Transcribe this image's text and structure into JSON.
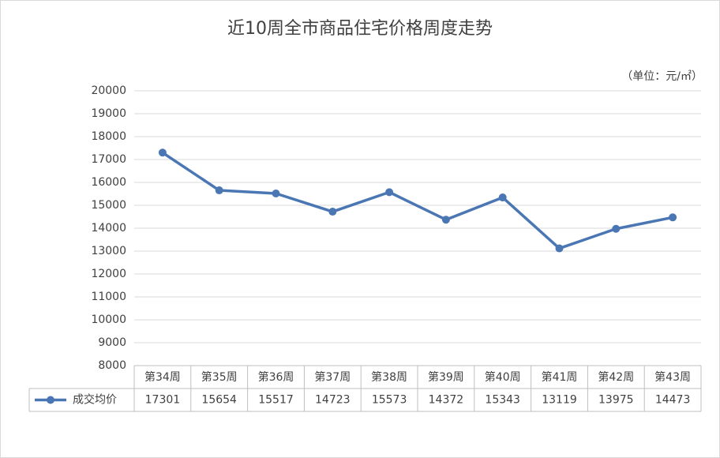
{
  "chart_data": {
    "type": "line",
    "title": "近10周全市商品住宅价格周度走势",
    "unit": "（单位：元/㎡）",
    "categories": [
      "第34周",
      "第35周",
      "第36周",
      "第37周",
      "第38周",
      "第39周",
      "第40周",
      "第41周",
      "第42周",
      "第43周"
    ],
    "series": [
      {
        "name": "成交均价",
        "color": "#4a77b4",
        "values": [
          17301,
          15654,
          15517,
          14723,
          15573,
          14372,
          15343,
          13119,
          13975,
          14473
        ]
      }
    ],
    "ylim": [
      8000,
      20000
    ],
    "yticks": [
      8000,
      9000,
      10000,
      11000,
      12000,
      13000,
      14000,
      15000,
      16000,
      17000,
      18000,
      19000,
      20000
    ],
    "grid": true,
    "data_table": true
  }
}
